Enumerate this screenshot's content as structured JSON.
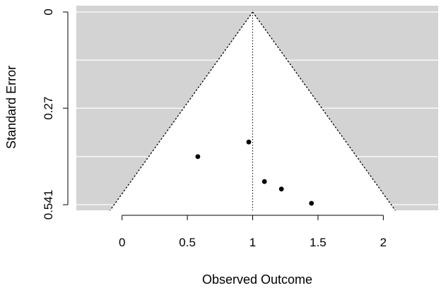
{
  "chart_data": {
    "type": "scatter",
    "subtype": "funnel",
    "title": "",
    "xlabel": "Observed Outcome",
    "ylabel": "Standard Error",
    "xlim": [
      -0.35,
      2.42
    ],
    "ylim": [
      0.541,
      0
    ],
    "x_ticks": [
      {
        "value": 0,
        "label": "0"
      },
      {
        "value": 0.5,
        "label": "0.5"
      },
      {
        "value": 1,
        "label": "1"
      },
      {
        "value": 1.5,
        "label": "1.5"
      },
      {
        "value": 2,
        "label": "2"
      }
    ],
    "y_ticks": [
      {
        "value": 0,
        "label": "0"
      },
      {
        "value": 0.27,
        "label": "0.27"
      },
      {
        "value": 0.541,
        "label": "0.541"
      }
    ],
    "y_gridlines": [
      0,
      0.135,
      0.27,
      0.406,
      0.541
    ],
    "reference_line_x": 1.0,
    "funnel_multiplier": 1.96,
    "points": [
      {
        "x": 0.58,
        "y": 0.406
      },
      {
        "x": 0.97,
        "y": 0.365
      },
      {
        "x": 1.09,
        "y": 0.476
      },
      {
        "x": 1.22,
        "y": 0.497
      },
      {
        "x": 1.45,
        "y": 0.537
      }
    ],
    "colors": {
      "background": "#d3d3d3",
      "funnel": "#ffffff",
      "grid": "#ffffff",
      "points": "#000000",
      "lines": "#000000"
    },
    "grid": true,
    "legend": "none"
  }
}
